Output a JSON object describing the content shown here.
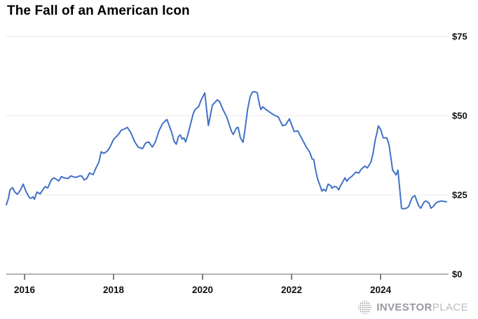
{
  "header": {
    "title": "The Fall of an American Icon"
  },
  "footer": {
    "logo": {
      "icon": "dotted-globe-icon",
      "part1": "INVESTOR",
      "part2": "PLACE",
      "color_primary": "#98989e",
      "color_secondary": "#bcbcc2"
    }
  },
  "chart_data": {
    "type": "line",
    "title": "The Fall of an American Icon",
    "currency_prefix": "$",
    "xlabel": "",
    "ylabel": "",
    "x_ticks": [
      2016,
      2018,
      2020,
      2022,
      2024
    ],
    "x_tick_labels": [
      "2016",
      "2018",
      "2020",
      "2022",
      "2024"
    ],
    "y_ticks": [
      0,
      25,
      50,
      75
    ],
    "y_tick_labels": [
      "$0",
      "$25",
      "$50",
      "$75"
    ],
    "x_range": [
      2015.59,
      2025.48
    ],
    "y_range": [
      0,
      75
    ],
    "grid": true,
    "legend": "none",
    "line_color": "#4272c6",
    "grid_color": "#e8e8e8",
    "axis_color": "#9b9b9b",
    "tick_color": "#555555",
    "label_color": "#111111",
    "points": {
      "x": [
        2015.59,
        2015.64,
        2015.67,
        2015.73,
        2015.78,
        2015.84,
        2015.91,
        2015.97,
        2016.03,
        2016.1,
        2016.14,
        2016.19,
        2016.22,
        2016.28,
        2016.35,
        2016.41,
        2016.46,
        2016.52,
        2016.6,
        2016.66,
        2016.72,
        2016.77,
        2016.83,
        2016.9,
        2016.98,
        2017.04,
        2017.1,
        2017.15,
        2017.24,
        2017.29,
        2017.34,
        2017.4,
        2017.46,
        2017.54,
        2017.61,
        2017.67,
        2017.72,
        2017.78,
        2017.86,
        2017.92,
        2018.0,
        2018.05,
        2018.12,
        2018.17,
        2018.24,
        2018.31,
        2018.39,
        2018.47,
        2018.55,
        2018.65,
        2018.72,
        2018.79,
        2018.87,
        2018.94,
        2019.02,
        2019.1,
        2019.2,
        2019.31,
        2019.36,
        2019.41,
        2019.46,
        2019.5,
        2019.54,
        2019.58,
        2019.62,
        2019.68,
        2019.74,
        2019.79,
        2019.83,
        2019.91,
        2019.97,
        2020.05,
        2020.13,
        2020.22,
        2020.33,
        2020.38,
        2020.46,
        2020.54,
        2020.6,
        2020.65,
        2020.69,
        2020.76,
        2020.8,
        2020.85,
        2020.91,
        2020.96,
        2021.01,
        2021.07,
        2021.12,
        2021.17,
        2021.23,
        2021.28,
        2021.31,
        2021.35,
        2021.43,
        2021.54,
        2021.62,
        2021.7,
        2021.8,
        2021.87,
        2021.95,
        2022.06,
        2022.14,
        2022.22,
        2022.33,
        2022.41,
        2022.46,
        2022.5,
        2022.53,
        2022.58,
        2022.65,
        2022.68,
        2022.72,
        2022.77,
        2022.82,
        2022.88,
        2022.91,
        2022.96,
        2023.01,
        2023.06,
        2023.1,
        2023.13,
        2023.2,
        2023.24,
        2023.29,
        2023.35,
        2023.4,
        2023.44,
        2023.51,
        2023.56,
        2023.61,
        2023.65,
        2023.7,
        2023.78,
        2023.83,
        2023.88,
        2023.92,
        2023.95,
        2024.0,
        2024.06,
        2024.14,
        2024.19,
        2024.27,
        2024.35,
        2024.39,
        2024.47,
        2024.5,
        2024.58,
        2024.63,
        2024.71,
        2024.77,
        2024.85,
        2024.9,
        2024.98,
        2025.02,
        2025.09,
        2025.13,
        2025.18,
        2025.24,
        2025.29,
        2025.37,
        2025.48
      ],
      "y": [
        21.9,
        24.0,
        26.5,
        27.3,
        25.9,
        25.2,
        26.6,
        28.4,
        26.2,
        24.3,
        23.9,
        24.4,
        23.6,
        25.9,
        25.3,
        26.6,
        27.6,
        27.2,
        29.7,
        30.4,
        29.9,
        29.4,
        30.8,
        30.3,
        30.2,
        31.0,
        30.7,
        30.5,
        31.0,
        30.9,
        29.7,
        30.2,
        31.9,
        31.4,
        33.7,
        35.3,
        38.6,
        38.1,
        38.8,
        40.1,
        42.5,
        43.2,
        44.3,
        45.4,
        45.8,
        46.3,
        44.6,
        41.9,
        40.1,
        39.6,
        41.4,
        41.7,
        40.1,
        41.7,
        45.2,
        47.5,
        48.8,
        44.6,
        41.9,
        41.0,
        43.5,
        43.9,
        42.6,
        43.0,
        41.7,
        44.6,
        47.9,
        50.6,
        51.9,
        52.8,
        55.0,
        57.2,
        46.9,
        53.3,
        55.0,
        54.5,
        51.9,
        49.7,
        47.2,
        45.0,
        44.1,
        46.1,
        46.3,
        43.0,
        41.6,
        46.3,
        51.9,
        56.1,
        57.4,
        57.6,
        57.2,
        53.4,
        51.9,
        52.8,
        51.9,
        50.8,
        50.1,
        49.6,
        46.8,
        47.2,
        49.0,
        45.0,
        45.2,
        43.0,
        40.1,
        38.4,
        36.4,
        36.1,
        33.5,
        30.2,
        27.5,
        26.2,
        26.8,
        26.2,
        28.4,
        27.9,
        27.1,
        27.7,
        27.5,
        26.6,
        27.9,
        28.6,
        30.4,
        29.3,
        30.2,
        30.8,
        31.5,
        32.2,
        31.9,
        33.0,
        33.7,
        34.1,
        33.5,
        35.3,
        38.0,
        42.4,
        44.6,
        46.8,
        45.7,
        43.0,
        43.0,
        40.8,
        32.8,
        31.3,
        32.8,
        20.8,
        20.6,
        20.8,
        21.3,
        24.2,
        24.8,
        21.7,
        20.8,
        22.8,
        23.1,
        22.4,
        20.8,
        21.3,
        22.4,
        22.8,
        23.1,
        22.8
      ]
    }
  }
}
